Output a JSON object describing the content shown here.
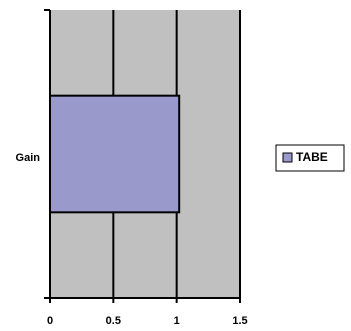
{
  "chart_data": {
    "type": "bar",
    "orientation": "horizontal",
    "categories": [
      "Gain"
    ],
    "series": [
      {
        "name": "TABE",
        "values": [
          1.02
        ]
      }
    ],
    "xlim": [
      0,
      1.5
    ],
    "x_ticks": [
      "0",
      "0.5",
      "1",
      "1.5"
    ],
    "title": "",
    "xlabel": "",
    "ylabel": "",
    "grid": "vertical",
    "legend_position": "right",
    "colors": {
      "plot_background": "#c0c0c0",
      "bar_fill": "#9999cc",
      "gridline": "#000000",
      "axis": "#000000"
    }
  }
}
